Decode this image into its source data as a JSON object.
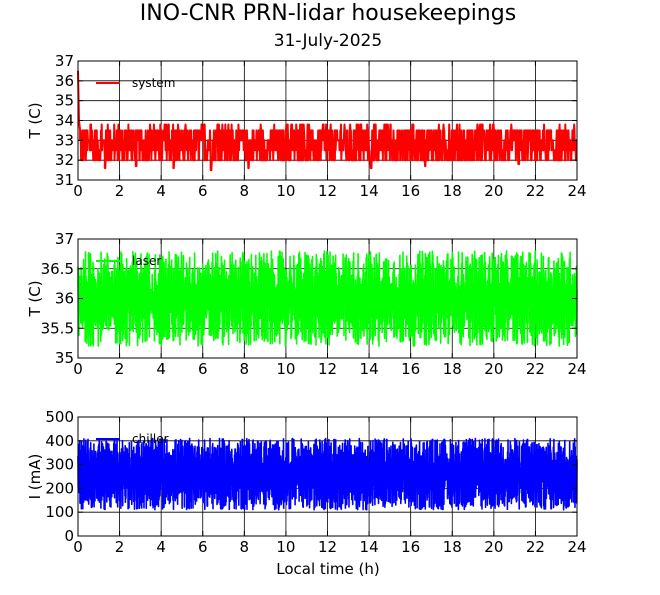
{
  "figure": {
    "title": "INO-CNR PRN-lidar housekeepings",
    "subtitle": "31-July-2025",
    "xlabel": "Local time (h)"
  },
  "colors": {
    "system": "#ff0000",
    "laser": "#00ff00",
    "current": "#0000ff",
    "grid": "#000000",
    "background": "#ffffff"
  },
  "chart_data": [
    {
      "type": "line",
      "ylabel": "T (C)",
      "xlim": [
        0,
        24
      ],
      "ylim": [
        31,
        37
      ],
      "xticks": [
        0,
        2,
        4,
        6,
        8,
        10,
        12,
        14,
        16,
        18,
        20,
        22,
        24
      ],
      "yticks": [
        31,
        32,
        33,
        34,
        35,
        36,
        37
      ],
      "grid": true,
      "legend_position": "top-left",
      "series": [
        {
          "name": "system",
          "color": "#ff0000",
          "start": [
            [
              0,
              36.5
            ],
            [
              0.05,
              34.0
            ],
            [
              0.1,
              33.5
            ]
          ],
          "x_range": [
            0.1,
            24
          ],
          "y_range_approx": [
            32.0,
            33.8
          ],
          "levels": [
            32,
            32.5,
            33,
            33.5
          ],
          "note_dips": [
            [
              1.3,
              31.6
            ],
            [
              2.8,
              31.7
            ],
            [
              4.6,
              31.6
            ],
            [
              6.4,
              31.5
            ],
            [
              8.2,
              31.6
            ],
            [
              14.1,
              31.6
            ],
            [
              16.7,
              31.7
            ],
            [
              21.2,
              31.8
            ]
          ]
        }
      ]
    },
    {
      "type": "line",
      "ylabel": "T (C)",
      "xlim": [
        0,
        24
      ],
      "ylim": [
        35,
        37
      ],
      "xticks": [
        0,
        2,
        4,
        6,
        8,
        10,
        12,
        14,
        16,
        18,
        20,
        22,
        24
      ],
      "yticks": [
        35,
        35.5,
        36,
        36.5,
        37
      ],
      "ytick_labels": [
        "35",
        "35.5",
        "36",
        "36.5",
        "37"
      ],
      "grid": true,
      "legend_position": "top-left",
      "series": [
        {
          "name": "laser",
          "color": "#00ff00",
          "x_range": [
            0,
            24
          ],
          "y_range_approx": [
            35.2,
            36.8
          ],
          "mean_approx": 36.0
        }
      ]
    },
    {
      "type": "line",
      "ylabel": "I (mA)",
      "xlim": [
        0,
        24
      ],
      "ylim": [
        0,
        500
      ],
      "xticks": [
        0,
        2,
        4,
        6,
        8,
        10,
        12,
        14,
        16,
        18,
        20,
        22,
        24
      ],
      "yticks": [
        0,
        100,
        200,
        300,
        400,
        500
      ],
      "grid": true,
      "legend_position": "top-left",
      "series": [
        {
          "name": "chiller",
          "color": "#0000ff",
          "x_range": [
            0,
            24
          ],
          "y_range_approx": [
            110,
            410
          ],
          "mean_approx": 260
        }
      ]
    }
  ]
}
